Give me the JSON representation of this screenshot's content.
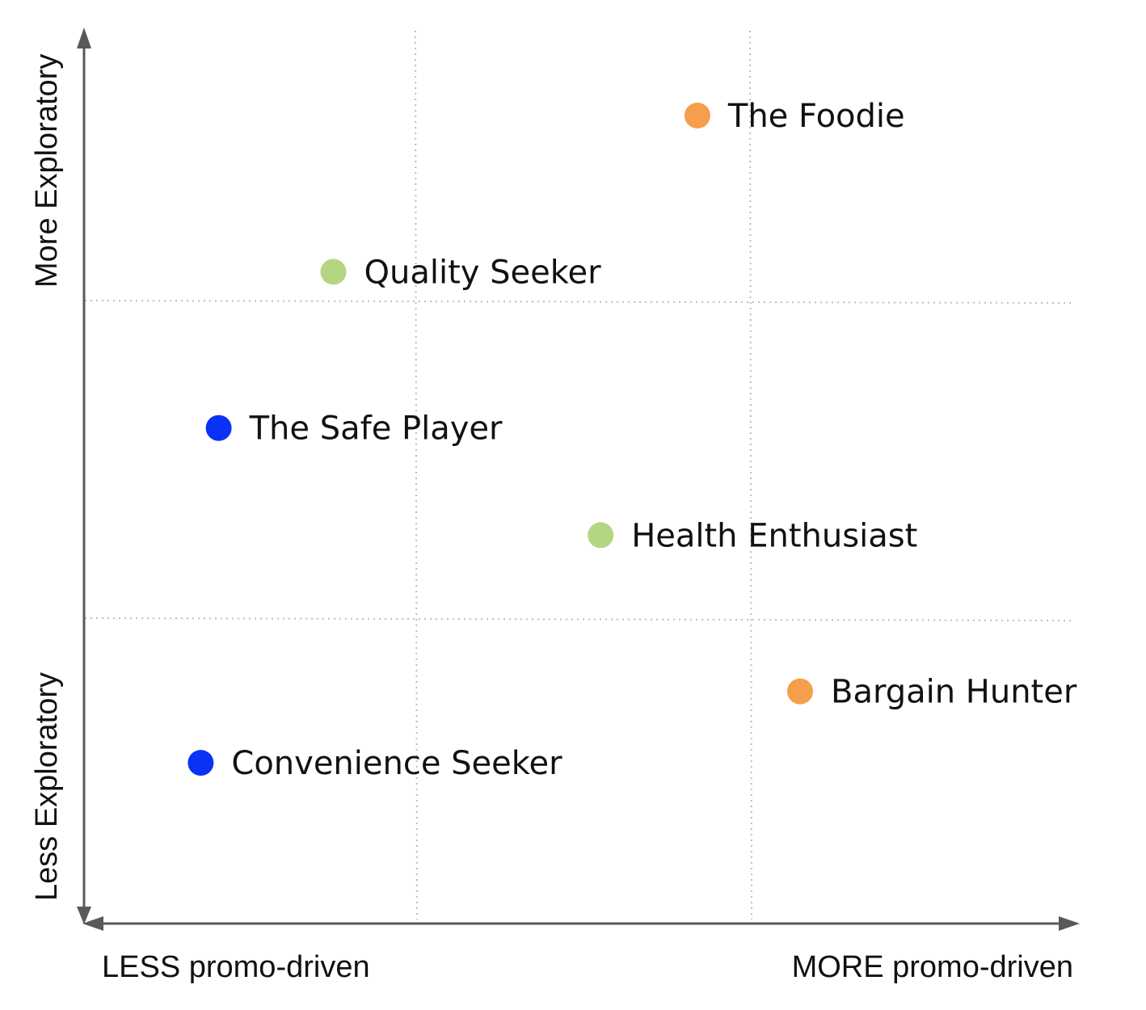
{
  "chart_data": {
    "type": "scatter",
    "quadrant_lines": true,
    "y_axis": {
      "top_label": "More Exploratory",
      "bottom_label": "Less Exploratory"
    },
    "x_axis": {
      "left_label": "LESS promo-driven",
      "right_label": "MORE promo-driven"
    },
    "points": [
      {
        "label": "The Foodie",
        "x": 0.615,
        "y": 0.905,
        "color": "#f59e4c"
      },
      {
        "label": "Quality Seeker",
        "x": 0.25,
        "y": 0.73,
        "color": "#b5d680"
      },
      {
        "label": "The Safe Player",
        "x": 0.135,
        "y": 0.555,
        "color": "#0a32f7"
      },
      {
        "label": "Health Enthusiast",
        "x": 0.518,
        "y": 0.435,
        "color": "#b5d680"
      },
      {
        "label": "Bargain Hunter",
        "x": 0.718,
        "y": 0.26,
        "color": "#f59e4c"
      },
      {
        "label": "Convenience Seeker",
        "x": 0.117,
        "y": 0.18,
        "color": "#0a32f7"
      }
    ]
  }
}
